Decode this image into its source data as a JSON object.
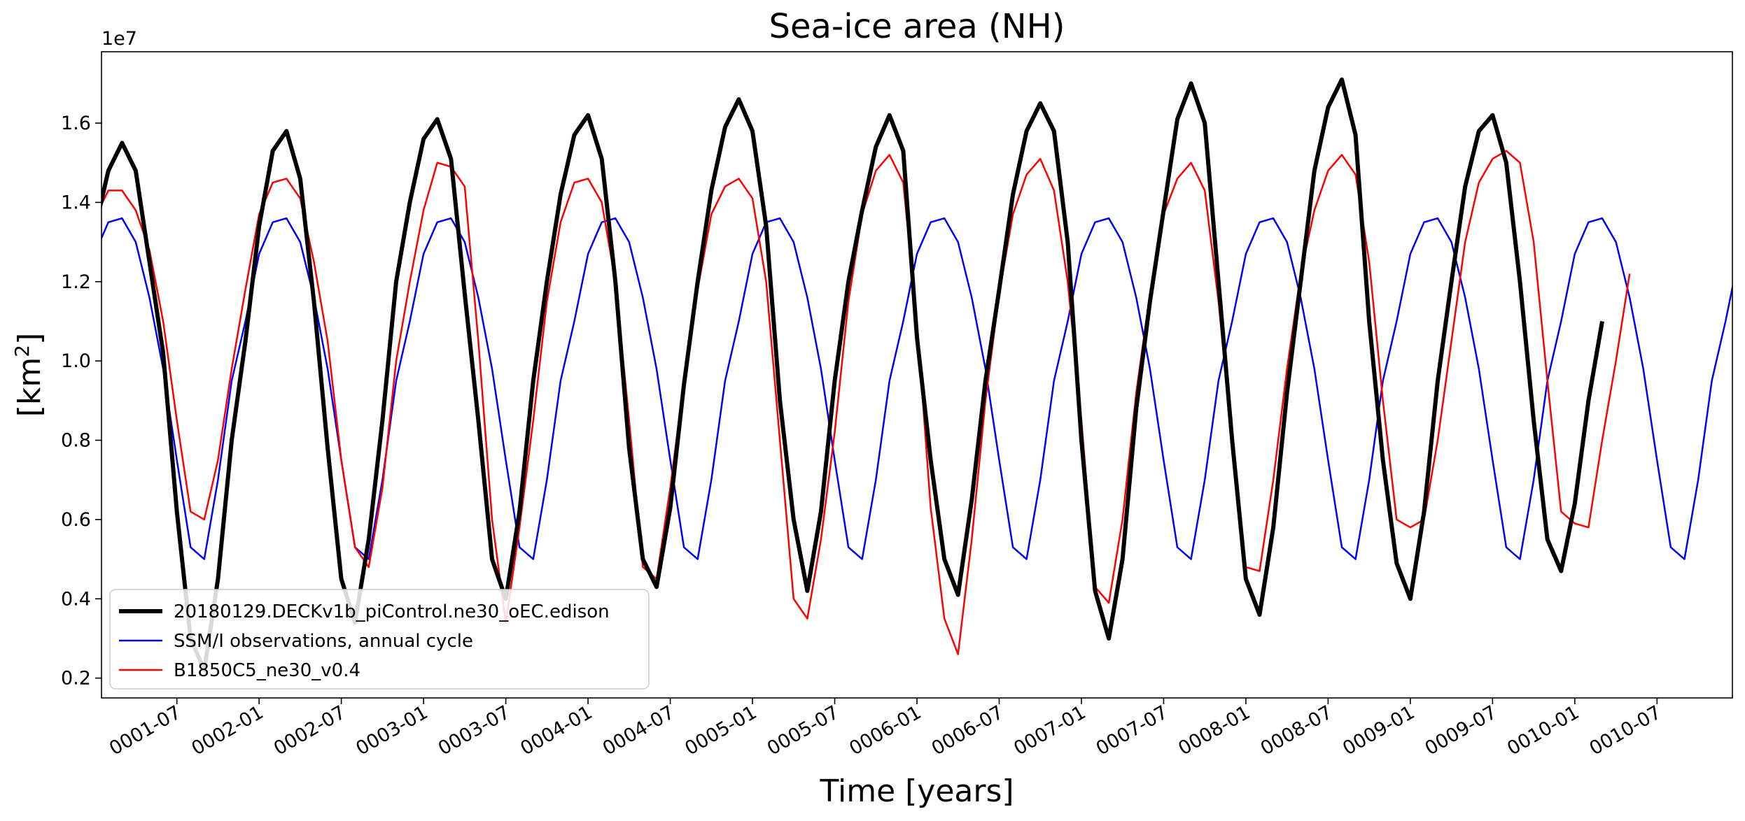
{
  "chart_data": {
    "type": "line",
    "title": "Sea-ice area (NH)",
    "xlabel": "Time [years]",
    "ylabel_base": "[km",
    "ylabel_exp": "2",
    "ylabel_close": "]",
    "y_offset_label": "1e7",
    "x_range_months": [
      0.5,
      119.5
    ],
    "ylim": [
      0.15,
      1.78
    ],
    "y_ticks": [
      0.2,
      0.4,
      0.6,
      0.8,
      1.0,
      1.2,
      1.4,
      1.6
    ],
    "y_tick_labels": [
      "0.2",
      "0.4",
      "0.6",
      "0.8",
      "1.0",
      "1.2",
      "1.4",
      "1.6"
    ],
    "x_tick_months": [
      6,
      12,
      18,
      24,
      30,
      36,
      42,
      48,
      54,
      60,
      66,
      72,
      78,
      84,
      90,
      96,
      102,
      108,
      114
    ],
    "x_tick_labels": [
      "0001-07",
      "0002-01",
      "0002-07",
      "0003-01",
      "0003-07",
      "0004-01",
      "0004-07",
      "0005-01",
      "0005-07",
      "0006-01",
      "0006-07",
      "0007-01",
      "0007-07",
      "0008-01",
      "0008-07",
      "0009-01",
      "0009-07",
      "0010-01",
      "0010-07"
    ],
    "legend_position": "lower-left",
    "series": [
      {
        "name": "20180129.DECKv1b_piControl.ne30_oEC.edison",
        "color": "#000000",
        "width": 6,
        "values": [
          1.33,
          1.48,
          1.55,
          1.48,
          1.25,
          1.02,
          0.62,
          0.3,
          0.22,
          0.45,
          0.8,
          1.05,
          1.34,
          1.53,
          1.58,
          1.46,
          1.15,
          0.78,
          0.45,
          0.34,
          0.55,
          0.85,
          1.2,
          1.4,
          1.56,
          1.61,
          1.51,
          1.17,
          0.85,
          0.5,
          0.4,
          0.62,
          0.95,
          1.2,
          1.42,
          1.57,
          1.62,
          1.51,
          1.2,
          0.78,
          0.5,
          0.43,
          0.63,
          0.94,
          1.2,
          1.43,
          1.59,
          1.66,
          1.58,
          1.34,
          0.9,
          0.6,
          0.42,
          0.62,
          0.95,
          1.2,
          1.38,
          1.54,
          1.62,
          1.53,
          1.06,
          0.75,
          0.5,
          0.41,
          0.65,
          0.95,
          1.18,
          1.42,
          1.58,
          1.65,
          1.58,
          1.3,
          0.8,
          0.42,
          0.3,
          0.5,
          0.88,
          1.15,
          1.38,
          1.61,
          1.7,
          1.6,
          1.2,
          0.8,
          0.45,
          0.36,
          0.58,
          0.92,
          1.2,
          1.48,
          1.64,
          1.71,
          1.57,
          1.1,
          0.75,
          0.49,
          0.4,
          0.62,
          0.95,
          1.2,
          1.44,
          1.58,
          1.62,
          1.5,
          1.2,
          0.85,
          0.55,
          0.47,
          0.64,
          0.9,
          1.1
        ]
      },
      {
        "name": "SSM/I observations, annual cycle",
        "color": "#0000ff",
        "width": 2.5,
        "values": [
          1.27,
          1.35,
          1.36,
          1.3,
          1.16,
          0.98,
          0.75,
          0.53,
          0.5,
          0.7,
          0.95,
          1.1,
          1.27,
          1.35,
          1.36,
          1.3,
          1.16,
          0.98,
          0.75,
          0.53,
          0.5,
          0.7,
          0.95,
          1.1,
          1.27,
          1.35,
          1.36,
          1.3,
          1.16,
          0.98,
          0.75,
          0.53,
          0.5,
          0.7,
          0.95,
          1.1,
          1.27,
          1.35,
          1.36,
          1.3,
          1.16,
          0.98,
          0.75,
          0.53,
          0.5,
          0.7,
          0.95,
          1.1,
          1.27,
          1.35,
          1.36,
          1.3,
          1.16,
          0.98,
          0.75,
          0.53,
          0.5,
          0.7,
          0.95,
          1.1,
          1.27,
          1.35,
          1.36,
          1.3,
          1.16,
          0.98,
          0.75,
          0.53,
          0.5,
          0.7,
          0.95,
          1.1,
          1.27,
          1.35,
          1.36,
          1.3,
          1.16,
          0.98,
          0.75,
          0.53,
          0.5,
          0.7,
          0.95,
          1.1,
          1.27,
          1.35,
          1.36,
          1.3,
          1.16,
          0.98,
          0.75,
          0.53,
          0.5,
          0.7,
          0.95,
          1.1,
          1.27,
          1.35,
          1.36,
          1.3,
          1.16,
          0.98,
          0.75,
          0.53,
          0.5,
          0.7,
          0.95,
          1.1,
          1.27,
          1.35,
          1.36,
          1.3,
          1.16,
          0.98,
          0.75,
          0.53,
          0.5,
          0.7,
          0.95,
          1.1,
          1.27,
          1.35,
          1.36,
          1.3,
          1.16,
          0.98,
          0.75,
          0.53,
          0.5,
          0.7,
          0.95,
          1.1,
          1.27,
          1.35,
          1.36
        ]
      },
      {
        "name": "B1850C5_ne30_v0.4",
        "color": "#ff0000",
        "width": 2.5,
        "values": [
          1.36,
          1.43,
          1.43,
          1.38,
          1.28,
          1.1,
          0.85,
          0.62,
          0.6,
          0.75,
          0.98,
          1.18,
          1.37,
          1.45,
          1.46,
          1.41,
          1.25,
          1.05,
          0.75,
          0.53,
          0.48,
          0.68,
          1.0,
          1.2,
          1.38,
          1.5,
          1.49,
          1.44,
          1.05,
          0.6,
          0.34,
          0.58,
          0.85,
          1.15,
          1.35,
          1.45,
          1.46,
          1.4,
          1.2,
          0.85,
          0.48,
          0.45,
          0.68,
          0.95,
          1.18,
          1.37,
          1.44,
          1.46,
          1.41,
          1.2,
          0.8,
          0.4,
          0.35,
          0.55,
          0.82,
          1.15,
          1.37,
          1.48,
          1.52,
          1.45,
          1.1,
          0.63,
          0.35,
          0.26,
          0.55,
          0.9,
          1.17,
          1.37,
          1.47,
          1.51,
          1.43,
          1.2,
          0.85,
          0.43,
          0.39,
          0.6,
          0.92,
          1.17,
          1.37,
          1.46,
          1.5,
          1.43,
          1.15,
          0.8,
          0.48,
          0.47,
          0.7,
          0.98,
          1.22,
          1.38,
          1.48,
          1.52,
          1.47,
          1.25,
          0.9,
          0.6,
          0.58,
          0.6,
          0.8,
          1.05,
          1.3,
          1.45,
          1.51,
          1.53,
          1.5,
          1.3,
          0.95,
          0.62,
          0.59,
          0.58,
          0.8,
          1.0,
          1.22
        ]
      }
    ]
  }
}
